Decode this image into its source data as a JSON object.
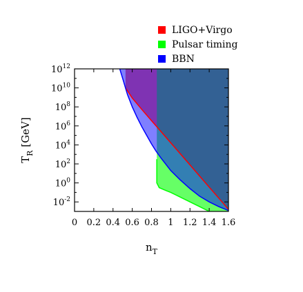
{
  "chart_data": {
    "type": "area",
    "title": "",
    "xlabel": {
      "base": "n",
      "sub": "T"
    },
    "ylabel": {
      "base": "T",
      "sub": "R",
      "unit": " [GeV]"
    },
    "xlim": [
      0,
      1.6
    ],
    "ylim_log10": [
      -3,
      12
    ],
    "y_scale": "log",
    "grid": false,
    "legend_position": "top-right",
    "x_ticks": [
      "0",
      "0.2",
      "0.4",
      "0.6",
      "0.8",
      "1",
      "1.2",
      "1.4",
      "1.6"
    ],
    "x_tick_values": [
      0,
      0.2,
      0.4,
      0.6,
      0.8,
      1,
      1.2,
      1.4,
      1.6
    ],
    "y_tick_exponents": [
      "12",
      "10",
      "8",
      "6",
      "4",
      "2",
      "0",
      "-2"
    ],
    "y_tick_values_log10": [
      12,
      10,
      8,
      6,
      4,
      2,
      0,
      -2
    ],
    "y_tick_base": "10",
    "series": [
      {
        "name": "LIGO+Virgo",
        "color": "#ff0000",
        "fill": "rgba(255,0,0,0.6)",
        "upper_log10": 12,
        "lower_boundary": [
          [
            0.53,
            10.0
          ],
          [
            0.6,
            8.93
          ],
          [
            0.7,
            7.72
          ],
          [
            0.8,
            6.55
          ],
          [
            0.9,
            5.39
          ],
          [
            1.0,
            4.22
          ],
          [
            1.1,
            3.06
          ],
          [
            1.2,
            1.89
          ],
          [
            1.3,
            0.72
          ],
          [
            1.4,
            -0.45
          ],
          [
            1.5,
            -1.61
          ],
          [
            1.6,
            -2.78
          ]
        ]
      },
      {
        "name": "Pulsar timing",
        "color": "#00ff00",
        "fill": "rgba(0,255,0,0.6)",
        "x_min": 0.855,
        "upper_log10": 12,
        "lower_boundary": [
          [
            0.855,
            2.5
          ],
          [
            0.855,
            0.0
          ],
          [
            0.88,
            -0.5
          ],
          [
            0.95,
            -0.8
          ],
          [
            1.0,
            -1.0
          ],
          [
            1.1,
            -1.5
          ],
          [
            1.2,
            -2.0
          ],
          [
            1.3,
            -2.5
          ],
          [
            1.4,
            -3.0
          ]
        ]
      },
      {
        "name": "BBN",
        "color": "#0000ff",
        "fill": "rgba(0,0,255,0.5)",
        "upper_log10": 12,
        "lower_boundary": [
          [
            0.47,
            12.0
          ],
          [
            0.5,
            11.0
          ],
          [
            0.55,
            9.3
          ],
          [
            0.6,
            8.0
          ],
          [
            0.65,
            6.9
          ],
          [
            0.7,
            5.9
          ],
          [
            0.75,
            5.0
          ],
          [
            0.8,
            4.1
          ],
          [
            0.85,
            3.3
          ],
          [
            0.9,
            2.6
          ],
          [
            1.0,
            1.3
          ],
          [
            1.1,
            0.3
          ],
          [
            1.2,
            -0.6
          ],
          [
            1.3,
            -1.4
          ],
          [
            1.4,
            -2.0
          ],
          [
            1.5,
            -2.5
          ],
          [
            1.6,
            -2.9
          ]
        ]
      }
    ]
  }
}
